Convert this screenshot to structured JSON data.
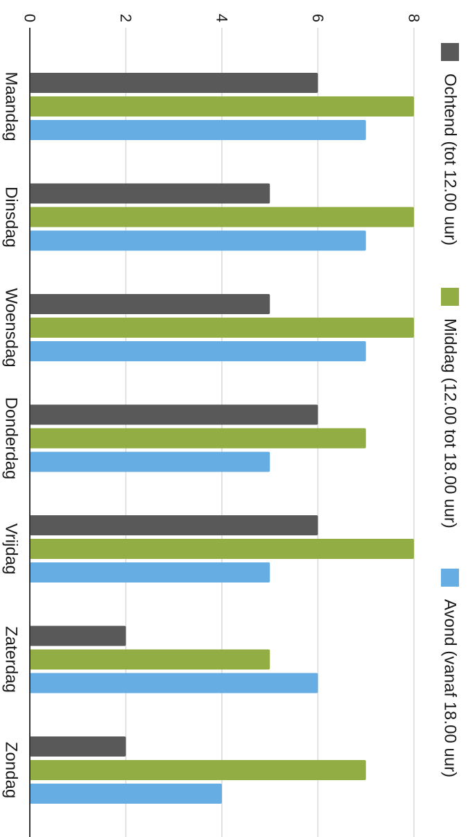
{
  "chart_data": {
    "type": "bar",
    "orientation": "horizontal",
    "rotation": "90deg-clockwise",
    "categories": [
      "Maandag",
      "Dinsdag",
      "Woensdag",
      "Donderdag",
      "Vrijdag",
      "Zaterdag",
      "Zondag"
    ],
    "series": [
      {
        "name": "Ochtend (tot 12.00 uur)",
        "color": "#595959",
        "values": [
          6,
          5,
          5,
          6,
          6,
          2,
          2
        ]
      },
      {
        "name": "Middag (12.00 tot 18.00 uur)",
        "color": "#93ad45",
        "values": [
          8,
          8,
          8,
          7,
          8,
          5,
          7
        ]
      },
      {
        "name": "Avond (vanaf 18.00 uur)",
        "color": "#65ade2",
        "values": [
          7,
          7,
          7,
          5,
          5,
          6,
          4
        ]
      }
    ],
    "xlim": [
      0,
      8
    ],
    "ticks": [
      0,
      2,
      4,
      6,
      8
    ],
    "tick_labels": [
      "0",
      "2",
      "4",
      "6",
      "8"
    ],
    "title": "",
    "xlabel": "",
    "ylabel": "",
    "grid": true,
    "legend": "right"
  }
}
